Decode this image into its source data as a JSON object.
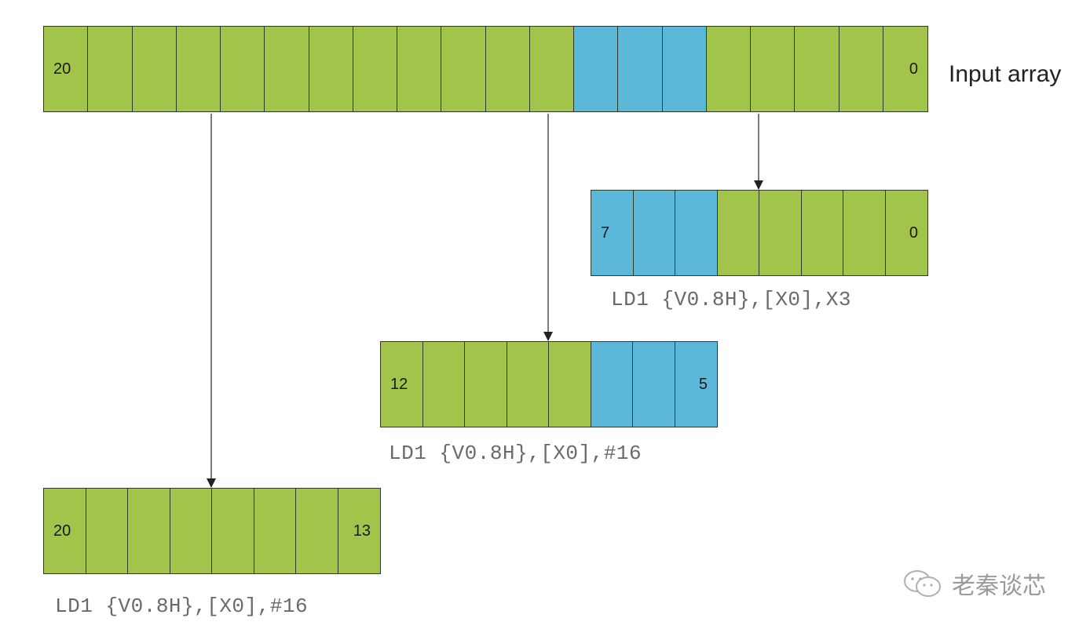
{
  "input_array": {
    "label": "Input array",
    "cells": [
      {
        "text": "20",
        "color": "green"
      },
      {
        "text": "",
        "color": "green"
      },
      {
        "text": "",
        "color": "green"
      },
      {
        "text": "",
        "color": "green"
      },
      {
        "text": "",
        "color": "green"
      },
      {
        "text": "",
        "color": "green"
      },
      {
        "text": "",
        "color": "green"
      },
      {
        "text": "",
        "color": "green"
      },
      {
        "text": "",
        "color": "green"
      },
      {
        "text": "",
        "color": "green"
      },
      {
        "text": "",
        "color": "green"
      },
      {
        "text": "",
        "color": "green"
      },
      {
        "text": "",
        "color": "blue"
      },
      {
        "text": "",
        "color": "blue"
      },
      {
        "text": "",
        "color": "blue"
      },
      {
        "text": "",
        "color": "green"
      },
      {
        "text": "",
        "color": "green"
      },
      {
        "text": "",
        "color": "green"
      },
      {
        "text": "",
        "color": "green"
      },
      {
        "text": "0",
        "color": "green"
      }
    ]
  },
  "load_x3": {
    "caption": "LD1 {V0.8H},[X0],X3",
    "cells": [
      {
        "text": "7",
        "color": "blue"
      },
      {
        "text": "",
        "color": "blue"
      },
      {
        "text": "",
        "color": "blue"
      },
      {
        "text": "",
        "color": "green"
      },
      {
        "text": "",
        "color": "green"
      },
      {
        "text": "",
        "color": "green"
      },
      {
        "text": "",
        "color": "green"
      },
      {
        "text": "0",
        "color": "green"
      }
    ]
  },
  "load_16_mid": {
    "caption": "LD1 {V0.8H},[X0],#16",
    "cells": [
      {
        "text": "12",
        "color": "green"
      },
      {
        "text": "",
        "color": "green"
      },
      {
        "text": "",
        "color": "green"
      },
      {
        "text": "",
        "color": "green"
      },
      {
        "text": "",
        "color": "green"
      },
      {
        "text": "",
        "color": "blue"
      },
      {
        "text": "",
        "color": "blue"
      },
      {
        "text": "5",
        "color": "blue"
      }
    ]
  },
  "load_16_low": {
    "caption": "LD1 {V0.8H},[X0],#16",
    "cells": [
      {
        "text": "20",
        "color": "green"
      },
      {
        "text": "",
        "color": "green"
      },
      {
        "text": "",
        "color": "green"
      },
      {
        "text": "",
        "color": "green"
      },
      {
        "text": "",
        "color": "green"
      },
      {
        "text": "",
        "color": "green"
      },
      {
        "text": "",
        "color": "green"
      },
      {
        "text": "13",
        "color": "green"
      }
    ]
  },
  "colors": {
    "green": "#a2c44a",
    "blue": "#5bb8d8"
  },
  "watermark": {
    "icon": "wechat-icon",
    "text": "老秦谈芯"
  }
}
